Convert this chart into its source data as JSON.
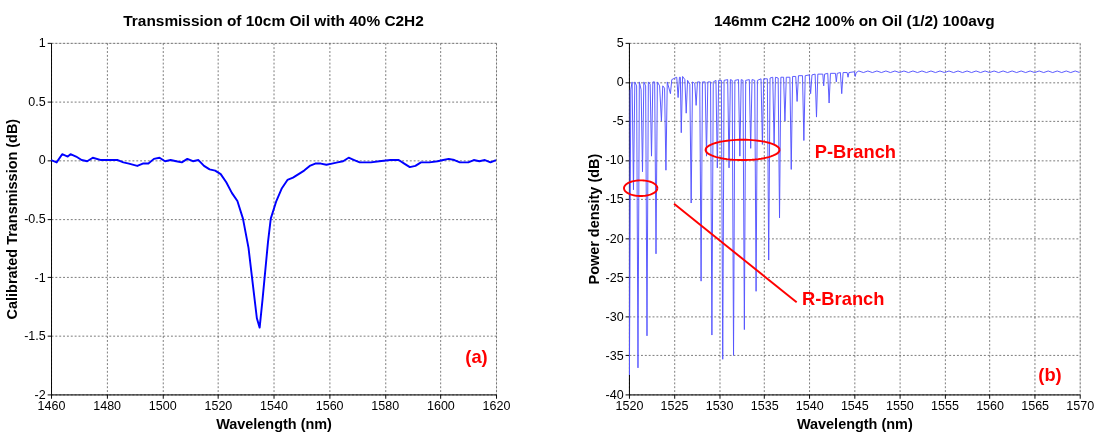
{
  "chart_data": [
    {
      "type": "line",
      "title": "Transmission of 10cm Oil with 40% C2H2",
      "xlabel": "Wavelength (nm)",
      "ylabel": "Calibrated Transmission (dB)",
      "xlim": [
        1460,
        1620
      ],
      "xticks": [
        1460,
        1480,
        1500,
        1520,
        1540,
        1560,
        1580,
        1600,
        1620
      ],
      "ylim": [
        -2,
        1
      ],
      "yticks": [
        -2,
        -1.5,
        -1,
        -0.5,
        0,
        0.5,
        1
      ],
      "grid": true,
      "annotations": [
        "(a)"
      ],
      "series": [
        {
          "color": "#0000ff",
          "x": [
            1460,
            1462,
            1464,
            1466,
            1467,
            1469,
            1471,
            1473,
            1475,
            1478,
            1480,
            1484,
            1486,
            1488,
            1491,
            1493,
            1495,
            1497,
            1499,
            1501,
            1503,
            1505,
            1507,
            1509,
            1511,
            1513,
            1515,
            1517,
            1519,
            1521,
            1523,
            1525,
            1527,
            1529,
            1531,
            1532,
            1533,
            1534,
            1535,
            1536,
            1537,
            1538,
            1539,
            1541,
            1543,
            1545,
            1547,
            1549,
            1551,
            1553,
            1555,
            1557,
            1559,
            1561,
            1563,
            1565,
            1567,
            1569,
            1571,
            1575,
            1578,
            1582,
            1585,
            1587,
            1589,
            1591,
            1593,
            1596,
            1599,
            1601,
            1603,
            1605,
            1607,
            1610,
            1612,
            1614,
            1616,
            1618,
            1620
          ],
          "values": [
            0.0,
            -0.02,
            0.05,
            0.03,
            0.05,
            0.03,
            0.0,
            -0.01,
            0.02,
            0.0,
            0.0,
            0.0,
            -0.02,
            -0.03,
            -0.05,
            -0.03,
            -0.03,
            0.01,
            0.02,
            -0.01,
            0.0,
            -0.01,
            -0.02,
            0.01,
            -0.01,
            0.0,
            -0.05,
            -0.08,
            -0.09,
            -0.12,
            -0.19,
            -0.28,
            -0.35,
            -0.5,
            -0.75,
            -0.95,
            -1.15,
            -1.35,
            -1.43,
            -1.2,
            -0.95,
            -0.7,
            -0.5,
            -0.35,
            -0.24,
            -0.17,
            -0.15,
            -0.12,
            -0.09,
            -0.05,
            -0.03,
            -0.03,
            -0.04,
            -0.03,
            -0.02,
            -0.01,
            0.02,
            0.0,
            -0.02,
            -0.02,
            -0.01,
            0.0,
            0.0,
            -0.03,
            -0.06,
            -0.05,
            -0.02,
            -0.02,
            -0.01,
            0.0,
            0.01,
            0.0,
            -0.02,
            -0.02,
            0.0,
            -0.01,
            0.0,
            -0.02,
            0.0
          ]
        }
      ]
    },
    {
      "type": "line",
      "title": "146mm C2H2 100% on Oil (1/2) 100avg",
      "xlabel": "Wavelength (nm)",
      "ylabel": "Power density (dB)",
      "xlim": [
        1520,
        1570
      ],
      "xticks": [
        1520,
        1525,
        1530,
        1535,
        1540,
        1545,
        1550,
        1555,
        1560,
        1565,
        1570
      ],
      "ylim": [
        -40,
        5
      ],
      "yticks": [
        -40,
        -35,
        -30,
        -25,
        -20,
        -15,
        -10,
        -5,
        0,
        5
      ],
      "grid": true,
      "annotations": [
        "P-Branch",
        "R-Branch",
        "(b)"
      ],
      "series": [
        {
          "color": "#5555ff",
          "x": [
            1520,
            1520.05,
            1520.2,
            1520.35,
            1520.5,
            1520.65,
            1520.85,
            1521.0,
            1521.15,
            1521.35,
            1521.5,
            1521.65,
            1521.85,
            1522.0,
            1522.15,
            1522.35,
            1522.5,
            1522.65,
            1522.85,
            1523.0,
            1523.15,
            1523.4,
            1523.6,
            1523.75,
            1523.95,
            1524.1,
            1524.25,
            1524.6,
            1524.75,
            1525.1,
            1525.3,
            1525.45,
            1525.6,
            1525.7,
            1525.8,
            1525.95,
            1526.2,
            1526.35,
            1526.5,
            1526.75,
            1526.9,
            1527.05,
            1527.3,
            1527.45,
            1527.6,
            1527.85,
            1528.0,
            1528.15,
            1528.45,
            1528.6,
            1528.75,
            1529.05,
            1529.2,
            1529.35,
            1529.65,
            1529.8,
            1529.95,
            1530.25,
            1530.4,
            1530.55,
            1530.95,
            1531.1,
            1531.25,
            1531.45,
            1531.6,
            1531.75,
            1532.15,
            1532.3,
            1532.45,
            1532.65,
            1532.8,
            1532.95,
            1533.35,
            1533.5,
            1533.65,
            1533.95,
            1534.1,
            1534.25,
            1534.65,
            1534.8,
            1534.95,
            1535.35,
            1535.5,
            1535.65,
            1535.95,
            1536.1,
            1536.25,
            1536.55,
            1536.7,
            1536.85,
            1537.15,
            1537.3,
            1537.45,
            1537.85,
            1538.0,
            1538.15,
            1538.5,
            1538.65,
            1538.8,
            1539.25,
            1539.4,
            1539.55,
            1540.0,
            1540.15,
            1540.3,
            1540.65,
            1540.8,
            1540.95,
            1541.5,
            1541.6,
            1541.7,
            1542.05,
            1542.2,
            1542.35,
            1542.9,
            1543.0,
            1543.1,
            1543.45,
            1543.6,
            1543.75,
            1544.2,
            1544.3,
            1544.4,
            1545.0,
            1545.1,
            1545.2,
            1545.5,
            1546,
            1546.5,
            1547,
            1547.5,
            1548,
            1548.5,
            1549,
            1549.5,
            1550,
            1550.5,
            1551,
            1551.5,
            1552,
            1552.5,
            1553,
            1553.5,
            1554,
            1554.5,
            1555,
            1555.5,
            1556,
            1556.5,
            1557,
            1557.5,
            1558,
            1558.5,
            1559,
            1559.5,
            1560,
            1560.5,
            1561,
            1561.5,
            1562,
            1562.5,
            1563,
            1563.5,
            1564,
            1564.5,
            1565,
            1565.5,
            1566,
            1566.5,
            1567,
            1567.5,
            1568,
            1568.5,
            1569,
            1569.5,
            1570
          ],
          "values": [
            -1,
            -37.5,
            -1,
            0,
            -13.8,
            0,
            -0.5,
            -36.6,
            0,
            -1,
            -11.5,
            0,
            -0.5,
            -32.5,
            0,
            -0.3,
            -9.5,
            0,
            0,
            -22,
            0,
            -0.5,
            -5,
            -0.5,
            -0.8,
            -11.3,
            0,
            -1.5,
            0.3,
            0.5,
            0.6,
            -2,
            0.6,
            0.6,
            -6.5,
            0.7,
            0.3,
            -4,
            0.2,
            -0.3,
            -15.5,
            0,
            -0.2,
            -3,
            0,
            0,
            -25.5,
            0,
            0,
            -9.5,
            0,
            0,
            -32.4,
            0,
            0.2,
            -11,
            0.2,
            0.2,
            -35.5,
            0.2,
            0.3,
            -11,
            0.3,
            0.2,
            -35,
            0.2,
            0.3,
            -9.5,
            0.3,
            0.2,
            -31.7,
            0.2,
            0.3,
            -8.5,
            0.3,
            0.2,
            -26.8,
            0.2,
            0.4,
            -8,
            0.4,
            0.4,
            -22.8,
            0.5,
            0.6,
            -8,
            0.6,
            0.5,
            -17.4,
            0.6,
            0.6,
            -5,
            0.6,
            0.6,
            -11.2,
            0.7,
            0.7,
            -2.5,
            0.8,
            0.8,
            -7.5,
            0.8,
            0.9,
            -1.5,
            0.9,
            1.0,
            -4.5,
            1.0,
            1.0,
            -0.5,
            1.0,
            1.1,
            -2.7,
            1.1,
            1.1,
            0.0,
            1.1,
            1.2,
            -1.5,
            1.2,
            1.2,
            0.6,
            1.2,
            1.3,
            0.7,
            1.2,
            1.4,
            1.2,
            1.4,
            1.2,
            1.4,
            1.2,
            1.4,
            1.2,
            1.4,
            1.2,
            1.4,
            1.2,
            1.4,
            1.2,
            1.4,
            1.2,
            1.4,
            1.2,
            1.4,
            1.2,
            1.4,
            1.2,
            1.4,
            1.2,
            1.4,
            1.2,
            1.4,
            1.2,
            1.4,
            1.2,
            1.4,
            1.2,
            1.4,
            1.2,
            1.4,
            1.2,
            1.4,
            1.2,
            1.4,
            1.2,
            1.4,
            1.2,
            1.4,
            1.2,
            1.4,
            1.2,
            1.4,
            1.2,
            1.4,
            1.2
          ]
        }
      ]
    }
  ]
}
